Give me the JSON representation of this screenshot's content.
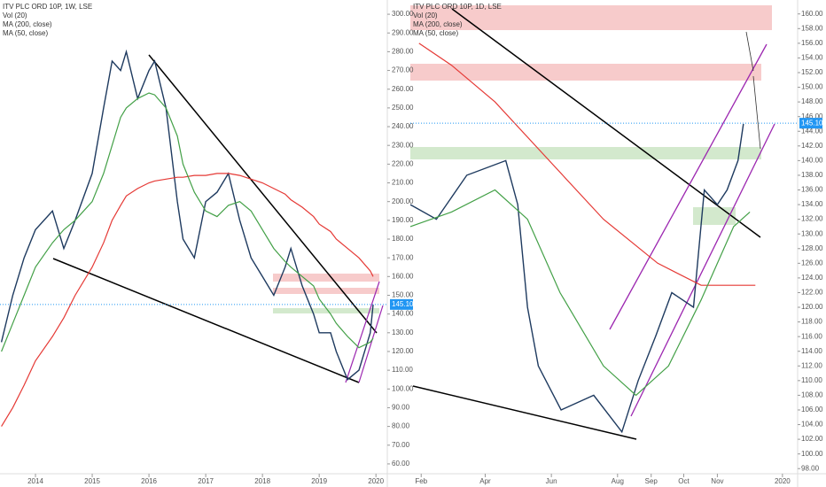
{
  "chart_data": [
    {
      "type": "line",
      "title": "ITV PLC ORD 10P, 1W, LSE",
      "volume_label": "Vol (20)",
      "xlim": [
        2013.375,
        2020.2
      ],
      "ylim": [
        52.4,
        307.6
      ],
      "xticks": [
        2014,
        2015,
        2016,
        2017,
        2018,
        2019,
        2020
      ],
      "yticks": [
        {
          "value": 60,
          "label": "60.00"
        },
        {
          "value": 70,
          "label": "70.00"
        },
        {
          "value": 80,
          "label": "80.00"
        },
        {
          "value": 90,
          "label": "90.00"
        },
        {
          "value": 100,
          "label": "100.00"
        },
        {
          "value": 110,
          "label": "110.00"
        },
        {
          "value": 120,
          "label": "120.00"
        },
        {
          "value": 130,
          "label": "130.00"
        },
        {
          "value": 140,
          "label": "140.00"
        },
        {
          "value": 150,
          "label": "150.00"
        },
        {
          "value": 160,
          "label": "160.00"
        },
        {
          "value": 170,
          "label": "170.00"
        },
        {
          "value": 180,
          "label": "180.00"
        },
        {
          "value": 190,
          "label": "190.00"
        },
        {
          "value": 200,
          "label": "200.00"
        },
        {
          "value": 210,
          "label": "210.00"
        },
        {
          "value": 220,
          "label": "220.00"
        },
        {
          "value": 230,
          "label": "230.00"
        },
        {
          "value": 240,
          "label": "240.00"
        },
        {
          "value": 250,
          "label": "250.00"
        },
        {
          "value": 260,
          "label": "260.00"
        },
        {
          "value": 270,
          "label": "270.00"
        },
        {
          "value": 280,
          "label": "280.00"
        },
        {
          "value": 290,
          "label": "290.00"
        },
        {
          "value": 300,
          "label": "300.00"
        }
      ],
      "last_price": {
        "value": 145.1,
        "label": "145.10"
      },
      "x": [
        2013.4,
        2013.6,
        2013.8,
        2014.0,
        2014.3,
        2014.5,
        2014.7,
        2015.0,
        2015.2,
        2015.35,
        2015.5,
        2015.6,
        2015.8,
        2016.0,
        2016.1,
        2016.3,
        2016.5,
        2016.6,
        2016.8,
        2017.0,
        2017.2,
        2017.4,
        2017.6,
        2017.8,
        2018.0,
        2018.2,
        2018.4,
        2018.5,
        2018.7,
        2018.9,
        2019.0,
        2019.2,
        2019.3,
        2019.5,
        2019.7,
        2019.9,
        2019.95
      ],
      "series": [
        {
          "color": "#1e3a5f",
          "values": [
            125,
            150,
            170,
            185,
            195,
            175,
            190,
            215,
            250,
            275,
            270,
            280,
            255,
            270,
            275,
            250,
            200,
            180,
            170,
            200,
            205,
            215,
            190,
            170,
            160,
            150,
            165,
            175,
            155,
            140,
            130,
            130,
            120,
            105,
            110,
            130,
            145
          ]
        },
        {
          "name": "MA (200, close)",
          "color": "#e53935",
          "values": [
            80,
            90,
            102,
            115,
            128,
            138,
            150,
            165,
            178,
            190,
            198,
            203,
            207,
            210,
            211,
            212,
            213,
            213,
            214,
            214,
            215,
            215,
            214,
            212,
            210,
            207,
            204,
            201,
            197,
            192,
            188,
            184,
            180,
            175,
            170,
            163,
            160
          ]
        },
        {
          "name": "MA (50, close)",
          "color": "#43a047",
          "values": [
            120,
            135,
            150,
            165,
            178,
            185,
            190,
            200,
            215,
            230,
            245,
            250,
            255,
            258,
            257,
            250,
            235,
            220,
            205,
            195,
            192,
            198,
            200,
            195,
            185,
            175,
            168,
            165,
            160,
            155,
            148,
            140,
            135,
            128,
            122,
            125,
            127
          ]
        }
      ]
    },
    {
      "type": "line",
      "title": "ITV PLC ORD 10P, 1D, LSE",
      "volume_label": "Vol (20)",
      "xlim": [
        22,
        379
      ],
      "ylim": [
        96.7,
        161.9
      ],
      "xticks": [
        {
          "value": 32,
          "label": "Feb"
        },
        {
          "value": 91,
          "label": "Apr"
        },
        {
          "value": 152,
          "label": "Jun"
        },
        {
          "value": 213,
          "label": "Aug"
        },
        {
          "value": 244,
          "label": "Sep"
        },
        {
          "value": 274,
          "label": "Oct"
        },
        {
          "value": 305,
          "label": "Nov"
        },
        {
          "value": 365,
          "label": "2020"
        }
      ],
      "yticks": [
        {
          "value": 98,
          "label": "98.00"
        },
        {
          "value": 100,
          "label": "100.00"
        },
        {
          "value": 102,
          "label": "102.00"
        },
        {
          "value": 104,
          "label": "104.00"
        },
        {
          "value": 106,
          "label": "106.00"
        },
        {
          "value": 108,
          "label": "108.00"
        },
        {
          "value": 110,
          "label": "110.00"
        },
        {
          "value": 112,
          "label": "112.00"
        },
        {
          "value": 114,
          "label": "114.00"
        },
        {
          "value": 116,
          "label": "116.00"
        },
        {
          "value": 118,
          "label": "118.00"
        },
        {
          "value": 120,
          "label": "120.00"
        },
        {
          "value": 122,
          "label": "122.00"
        },
        {
          "value": 124,
          "label": "124.00"
        },
        {
          "value": 126,
          "label": "126.00"
        },
        {
          "value": 128,
          "label": "128.00"
        },
        {
          "value": 130,
          "label": "130.00"
        },
        {
          "value": 132,
          "label": "132.00"
        },
        {
          "value": 134,
          "label": "134.00"
        },
        {
          "value": 136,
          "label": "136.00"
        },
        {
          "value": 138,
          "label": "138.00"
        },
        {
          "value": 140,
          "label": "140.00"
        },
        {
          "value": 142,
          "label": "142.00"
        },
        {
          "value": 144,
          "label": "144.00"
        },
        {
          "value": 146,
          "label": "146.00"
        },
        {
          "value": 148,
          "label": "148.00"
        },
        {
          "value": 150,
          "label": "150.00"
        },
        {
          "value": 152,
          "label": "152.00"
        },
        {
          "value": 154,
          "label": "154.00"
        },
        {
          "value": 156,
          "label": "156.00"
        },
        {
          "value": 158,
          "label": "158.00"
        },
        {
          "value": 160,
          "label": "160.00"
        }
      ],
      "last_price": {
        "value": 145.1,
        "label": "145.10"
      },
      "x": [
        22,
        46,
        74,
        110,
        121,
        130,
        140,
        161,
        191,
        217,
        232,
        248,
        263,
        283,
        293,
        305,
        314,
        324,
        329
      ],
      "series": [
        {
          "color": "#1e3a5f",
          "values": [
            134,
            132,
            138,
            140,
            134,
            120,
            112,
            106,
            108,
            103,
            110,
            116,
            122,
            120,
            136,
            134,
            136,
            140,
            145
          ]
        },
        {
          "name": "MA (200, close)",
          "color": "#e53935",
          "x": [
            30,
            60,
            100,
            150,
            200,
            250,
            290,
            340
          ],
          "values": [
            156,
            153,
            148,
            140,
            132,
            126,
            123,
            123
          ]
        },
        {
          "name": "MA (50, close)",
          "color": "#43a047",
          "x": [
            22,
            60,
            100,
            130,
            160,
            200,
            230,
            260,
            290,
            320,
            335
          ],
          "values": [
            131,
            133,
            136,
            132,
            122,
            112,
            108,
            112,
            121,
            131,
            133
          ]
        }
      ]
    }
  ]
}
